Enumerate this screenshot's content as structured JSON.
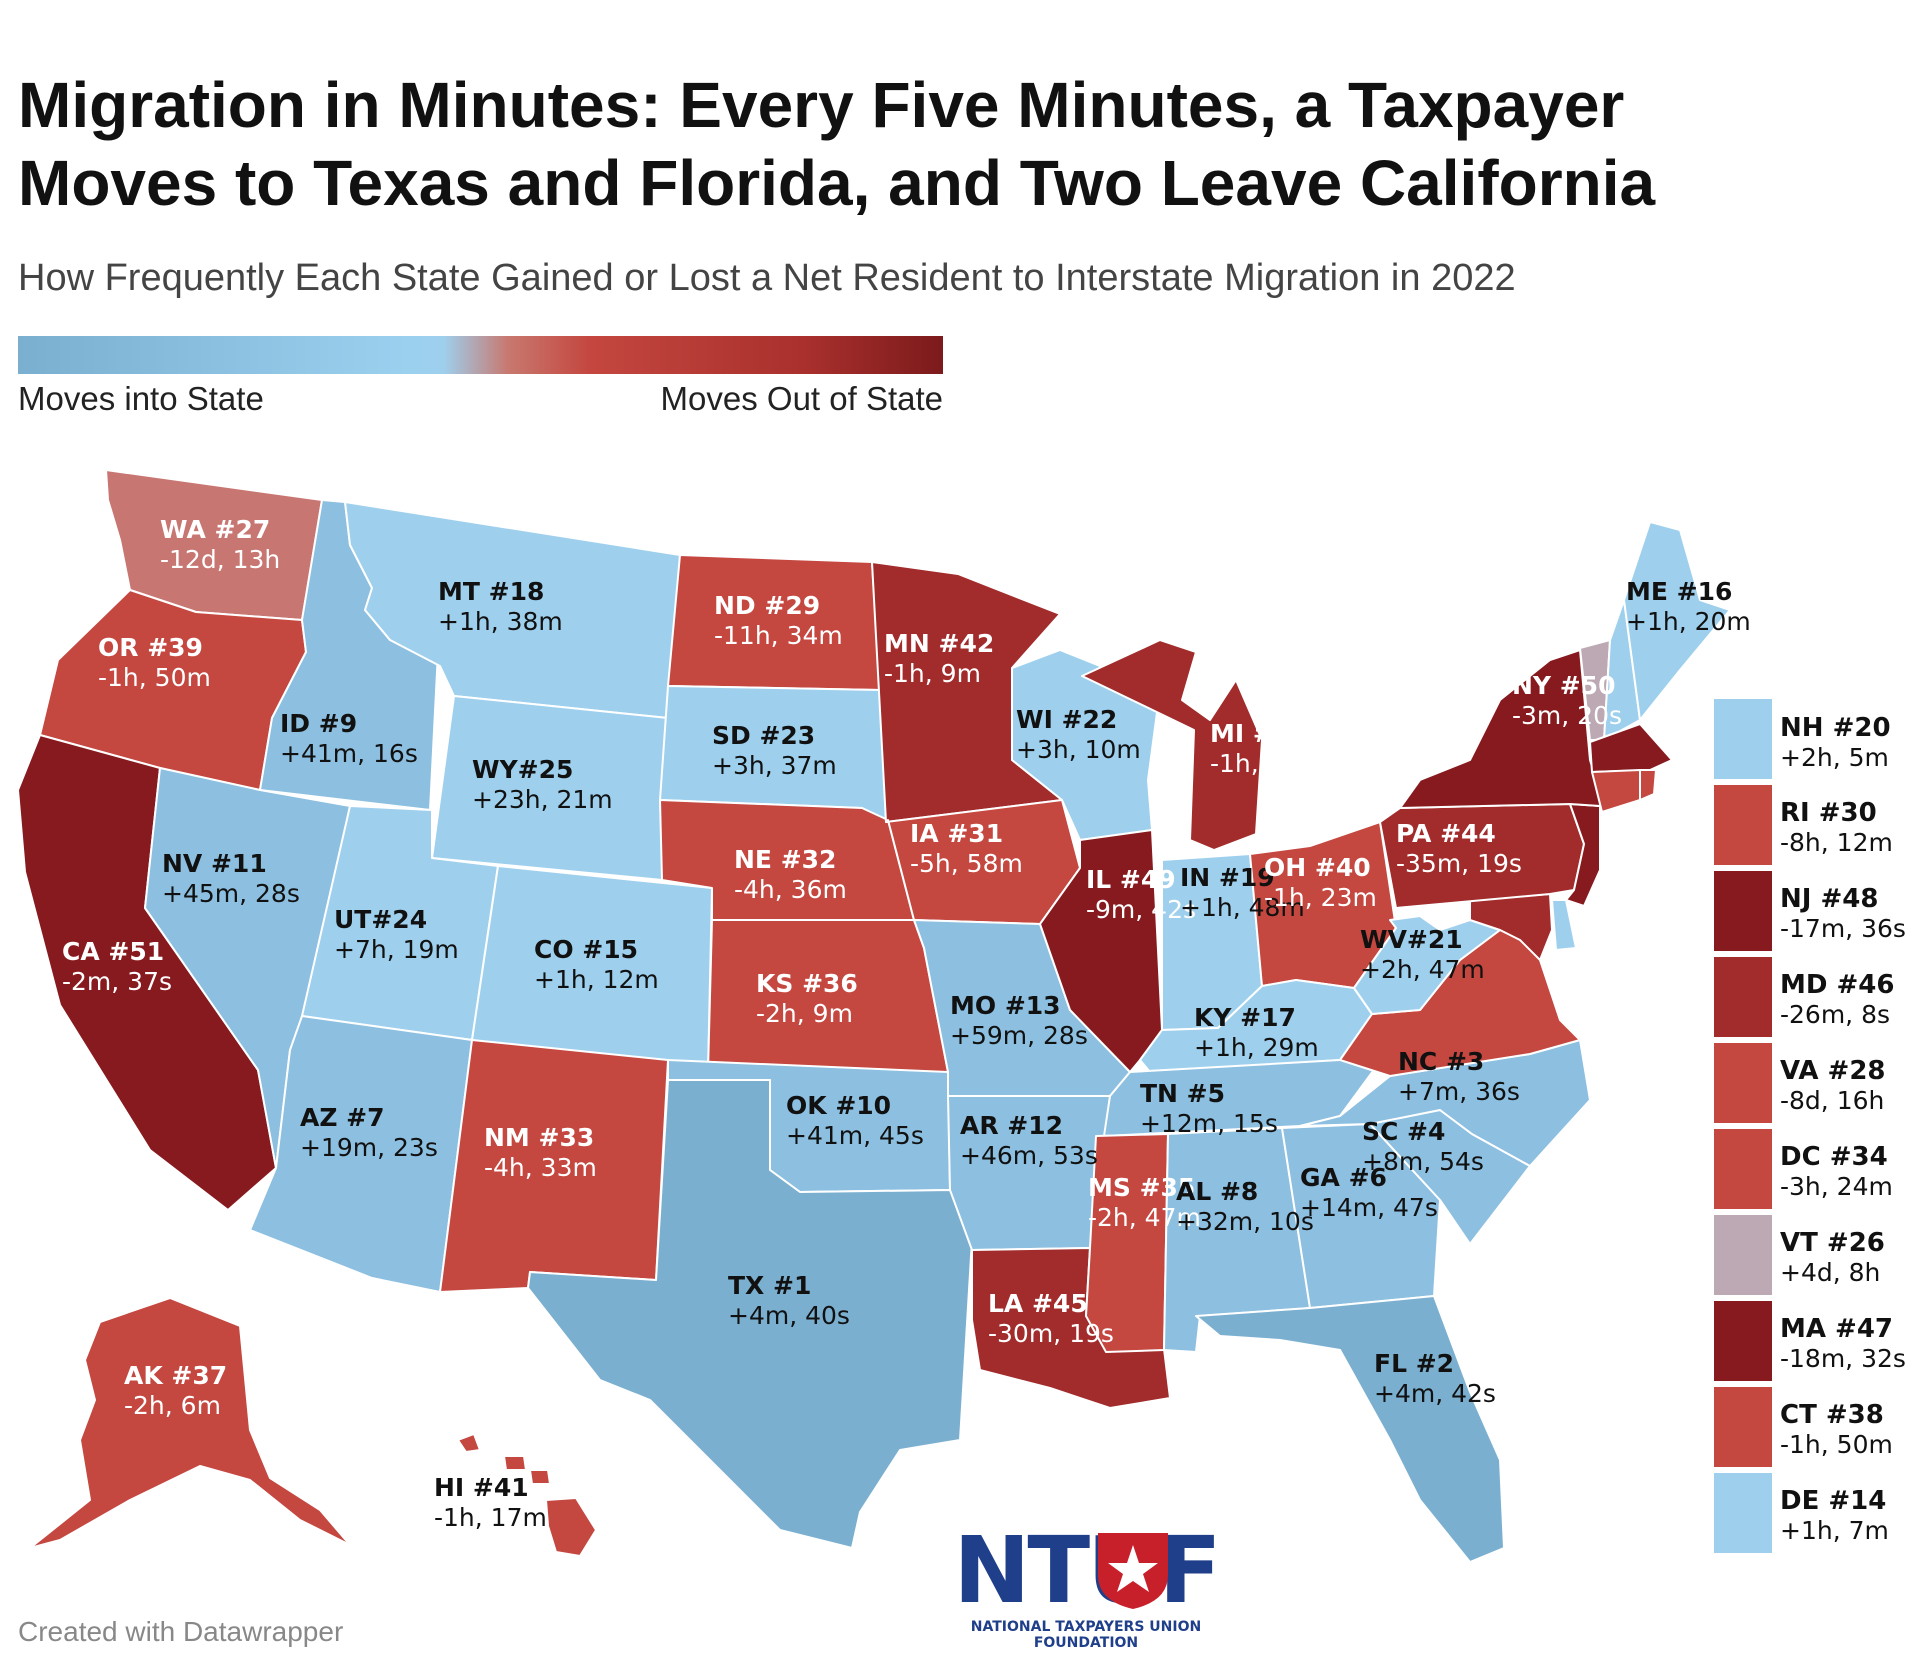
{
  "title": "Migration in Minutes: Every Five Minutes, a Taxpayer Moves to Texas and Florida, and Two Leave California",
  "subtitle": "How Frequently Each State Gained or Lost a Net Resident to Interstate Migration in 2022",
  "legend": {
    "left": "Moves into State",
    "right": "Moves Out of State",
    "gradient": [
      "#7bafd0",
      "#9bd0ef",
      "#c8786f",
      "#c4463f",
      "#a9302d",
      "#7c1a1c"
    ]
  },
  "colors": {
    "in_deep": "#7bafd0",
    "in_mid": "#8cbfe0",
    "in_light": "#9ed0ee",
    "out_light": "#c87672",
    "out_mid": "#c44740",
    "out_dark": "#a22b2b",
    "out_deep": "#871a1e",
    "neutral": "#bca9b3",
    "border": "#ffffff"
  },
  "states": {
    "WA": {
      "name": "WA #27",
      "value": "-12d, 13h"
    },
    "OR": {
      "name": "OR #39",
      "value": "-1h, 50m"
    },
    "CA": {
      "name": "CA #51",
      "value": "-2m, 37s"
    },
    "ID": {
      "name": "ID #9",
      "value": "+41m, 16s"
    },
    "NV": {
      "name": "NV #11",
      "value": "+45m, 28s"
    },
    "MT": {
      "name": "MT #18",
      "value": "+1h, 38m"
    },
    "WY": {
      "name": "WY#25",
      "value": "+23h, 21m"
    },
    "UT": {
      "name": "UT#24",
      "value": "+7h, 19m"
    },
    "AZ": {
      "name": "AZ #7",
      "value": "+19m, 23s"
    },
    "CO": {
      "name": "CO #15",
      "value": "+1h, 12m"
    },
    "NM": {
      "name": "NM #33",
      "value": "-4h, 33m"
    },
    "ND": {
      "name": "ND #29",
      "value": "-11h, 34m"
    },
    "SD": {
      "name": "SD #23",
      "value": "+3h, 37m"
    },
    "NE": {
      "name": "NE #32",
      "value": "-4h, 36m"
    },
    "KS": {
      "name": "KS #36",
      "value": "-2h, 9m"
    },
    "OK": {
      "name": "OK #10",
      "value": "+41m, 45s"
    },
    "TX": {
      "name": "TX #1",
      "value": "+4m, 40s"
    },
    "MN": {
      "name": "MN #42",
      "value": "-1h, 9m"
    },
    "IA": {
      "name": "IA #31",
      "value": "-5h, 58m"
    },
    "MO": {
      "name": "MO #13",
      "value": "+59m, 28s"
    },
    "AR": {
      "name": "AR #12",
      "value": "+46m, 53s"
    },
    "LA": {
      "name": "LA #45",
      "value": "-30m, 19s"
    },
    "WI": {
      "name": "WI #22",
      "value": "+3h, 10m"
    },
    "IL": {
      "name": "IL #49",
      "value": "-9m, 42s"
    },
    "MI": {
      "name": "MI #43",
      "value": "-1h, 2m"
    },
    "IN": {
      "name": "IN #19",
      "value": "+1h, 48m"
    },
    "OH": {
      "name": "OH #40",
      "value": "-1h, 23m"
    },
    "KY": {
      "name": "KY #17",
      "value": "+1h, 29m"
    },
    "TN": {
      "name": "TN #5",
      "value": "+12m, 15s"
    },
    "MS": {
      "name": "MS #35",
      "value": "-2h, 47m"
    },
    "AL": {
      "name": "AL #8",
      "value": "+32m, 10s"
    },
    "GA": {
      "name": "GA #6",
      "value": "+14m, 47s"
    },
    "FL": {
      "name": "FL #2",
      "value": "+4m, 42s"
    },
    "SC": {
      "name": "SC #4",
      "value": "+8m, 54s"
    },
    "NC": {
      "name": "NC #3",
      "value": "+7m, 36s"
    },
    "VA": {
      "name": "VA #28",
      "value": "-8d, 16h"
    },
    "WV": {
      "name": "WV#21",
      "value": "+2h, 47m"
    },
    "PA": {
      "name": "PA #44",
      "value": "-35m, 19s"
    },
    "NY": {
      "name": "NY #50",
      "value": "-3m, 20s"
    },
    "ME": {
      "name": "ME #16",
      "value": "+1h, 20m"
    },
    "AK": {
      "name": "AK #37",
      "value": "-2h, 6m"
    },
    "HI": {
      "name": "HI #41",
      "value": "-1h, 17m"
    },
    "NH": {
      "name": "NH #20",
      "value": "+2h, 5m"
    },
    "RI": {
      "name": "RI #30",
      "value": "-8h, 12m"
    },
    "NJ": {
      "name": "NJ #48",
      "value": "-17m, 36s"
    },
    "MD": {
      "name": "MD #46",
      "value": "-26m, 8s"
    },
    "DC": {
      "name": "DC #34",
      "value": "-3h, 24m"
    },
    "VT": {
      "name": "VT #26",
      "value": "+4d, 8h"
    },
    "MA": {
      "name": "MA #47",
      "value": "-18m, 32s"
    },
    "CT": {
      "name": "CT #38",
      "value": "-1h, 50m"
    },
    "DE": {
      "name": "DE #14",
      "value": "+1h, 7m"
    }
  },
  "credit": "Created with Datawrapper",
  "logo": {
    "wordmark": "NTUF",
    "tagline": "NATIONAL TAXPAYERS UNION FOUNDATION"
  }
}
